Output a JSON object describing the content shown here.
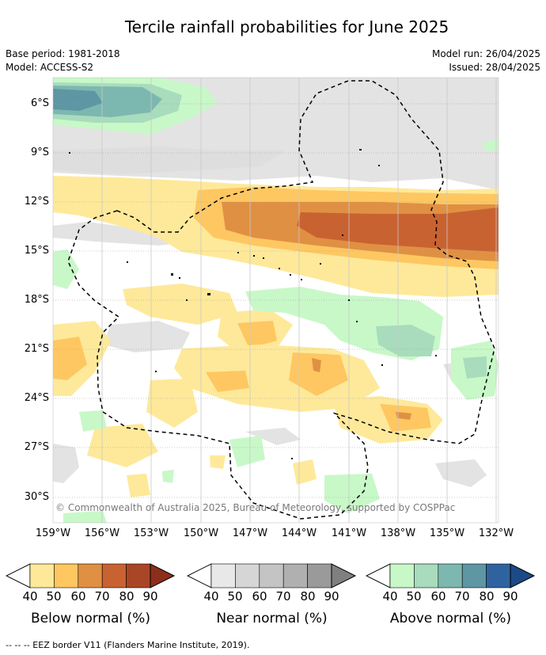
{
  "title": "Tercile rainfall probabilities for June 2025",
  "base_period": "Base period: 1981-2018",
  "model": "Model: ACCESS-S2",
  "model_run": "Model run: 26/04/2025",
  "issued": "Issued: 28/04/2025",
  "copyright": "© Commonwealth of Australia 2025, Bureau of Meteorology, supported by COSPPac",
  "footer": "-- -- -- EEZ border V11 (Flanders Marine Institute, 2019).",
  "lat_labels": [
    "6°S",
    "9°S",
    "12°S",
    "15°S",
    "18°S",
    "21°S",
    "24°S",
    "27°S",
    "30°S"
  ],
  "lon_labels": [
    "159°W",
    "156°W",
    "153°W",
    "150°W",
    "147°W",
    "144°W",
    "141°W",
    "138°W",
    "135°W",
    "132°W"
  ],
  "legends": [
    {
      "label": "Below normal (%)",
      "ticks": [
        "40",
        "50",
        "60",
        "70",
        "80",
        "90"
      ],
      "colors": [
        "#ffffff",
        "#fee99a",
        "#fec761",
        "#e09043",
        "#c96231",
        "#a94625",
        "#8b2f1a"
      ]
    },
    {
      "label": "Near normal (%)",
      "ticks": [
        "40",
        "50",
        "60",
        "70",
        "80",
        "90"
      ],
      "colors": [
        "#ffffff",
        "#e8e8e8",
        "#d6d6d6",
        "#c4c4c4",
        "#b0b0b0",
        "#9a9a9a",
        "#808080"
      ]
    },
    {
      "label": "Above normal (%)",
      "ticks": [
        "40",
        "50",
        "60",
        "70",
        "80",
        "90"
      ],
      "colors": [
        "#ffffff",
        "#c8f8c8",
        "#a8dcbc",
        "#7cb8b0",
        "#5e96a4",
        "#2f63a0",
        "#1c4a86"
      ]
    }
  ]
}
